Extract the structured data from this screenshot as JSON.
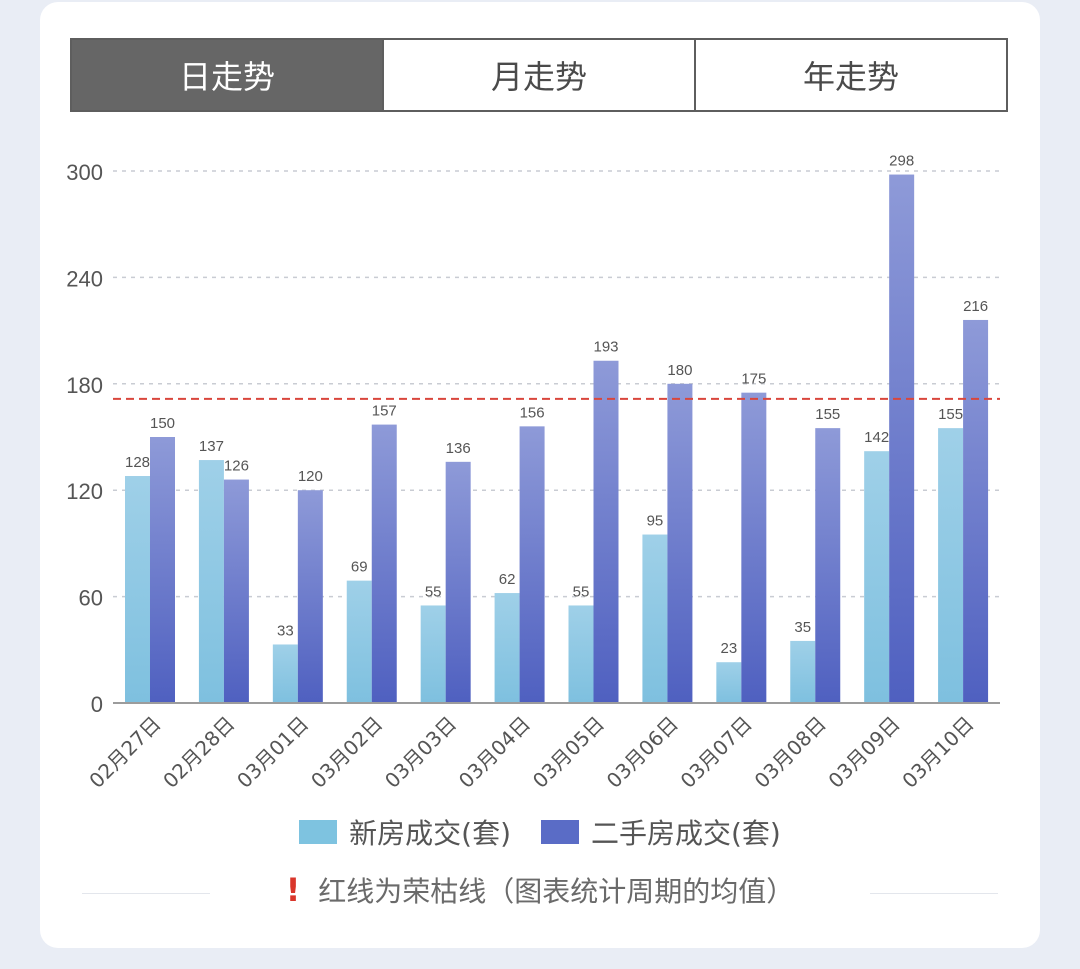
{
  "tabs": [
    {
      "label": "日走势",
      "active": true
    },
    {
      "label": "月走势",
      "active": false
    },
    {
      "label": "年走势",
      "active": false
    }
  ],
  "chart_data": {
    "type": "bar",
    "categories": [
      "02月27日",
      "02月28日",
      "03月01日",
      "03月02日",
      "03月03日",
      "03月04日",
      "03月05日",
      "03月06日",
      "03月07日",
      "03月08日",
      "03月09日",
      "03月10日"
    ],
    "series": [
      {
        "name": "新房成交(套)",
        "values": [
          128,
          137,
          33,
          69,
          55,
          62,
          55,
          95,
          23,
          35,
          142,
          155
        ],
        "color": "#7ec3e0"
      },
      {
        "name": "二手房成交(套)",
        "values": [
          150,
          126,
          120,
          157,
          136,
          156,
          193,
          180,
          175,
          155,
          298,
          216
        ],
        "color": "#5a6cc6"
      }
    ],
    "yticks": [
      0,
      60,
      120,
      180,
      240,
      300
    ],
    "ylim": [
      0,
      300
    ],
    "reference_line": {
      "value": 171.5,
      "color": "#d9463c"
    },
    "grid": true,
    "legend": "bottom"
  },
  "note": {
    "text": "红线为荣枯线（图表统计周期的均值）",
    "icon": "exclamation-icon"
  }
}
